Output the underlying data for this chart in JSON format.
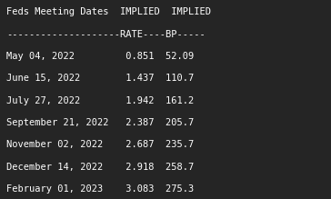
{
  "background_color": "#252525",
  "text_color": "#ffffff",
  "header1": "Feds Meeting Dates  IMPLIED  IMPLIED",
  "header2": "--------------------RATE----BP-----",
  "rows": [
    [
      "May 04, 2022",
      "0.851",
      "52.09"
    ],
    [
      "June 15, 2022",
      "1.437",
      "110.7"
    ],
    [
      "July 27, 2022",
      "1.942",
      "161.2"
    ],
    [
      "September 21, 2022",
      "2.387",
      "205.7"
    ],
    [
      "November 02, 2022",
      "2.687",
      "235.7"
    ],
    [
      "December 14, 2022",
      "2.918",
      "258.7"
    ],
    [
      "February 01, 2023",
      "3.083",
      "275.3"
    ]
  ],
  "font_size": 7.5,
  "font_family": "monospace"
}
